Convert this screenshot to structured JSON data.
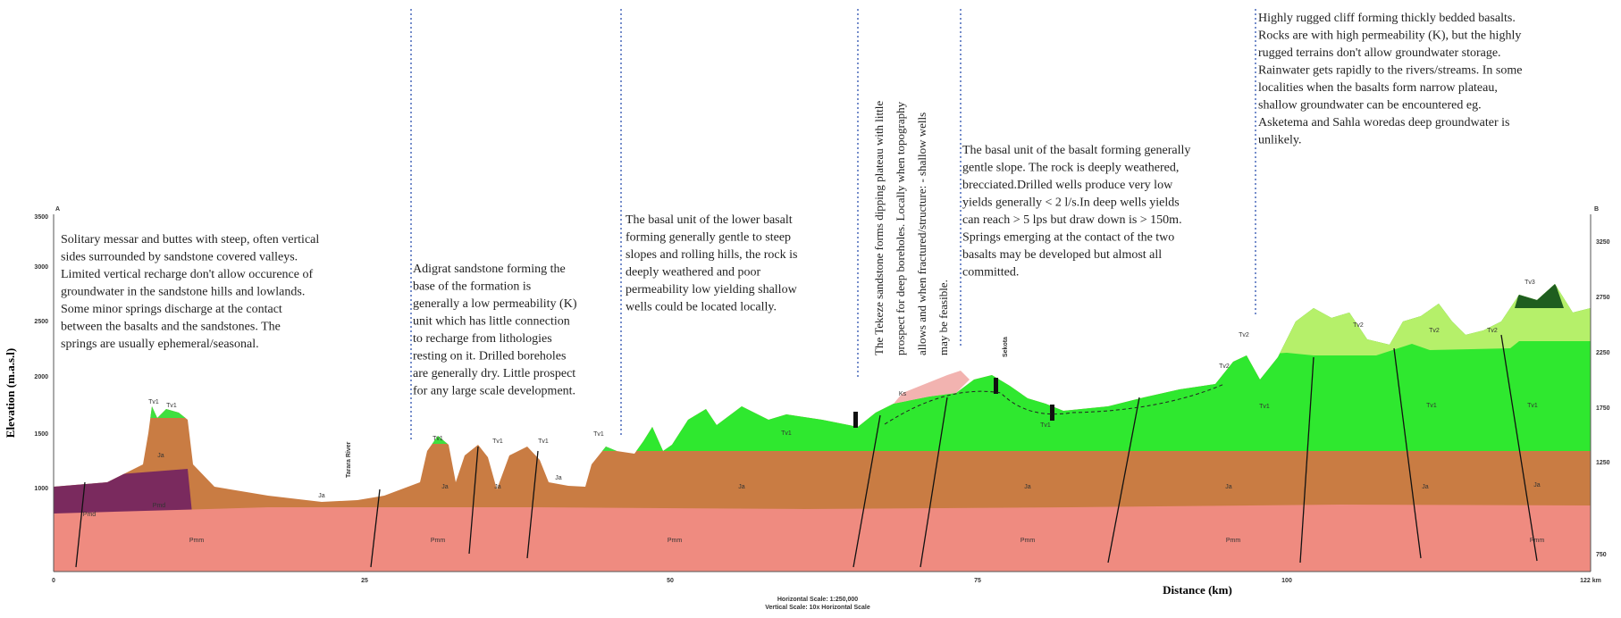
{
  "profile": {
    "start_label": "A",
    "end_label": "B",
    "y_axis_label": "Elevation (m.a.s.l)",
    "x_axis_label": "Distance (km)",
    "left_ticks": [
      "3500",
      "3000",
      "2500",
      "2000",
      "1500",
      "1000"
    ],
    "right_ticks": [
      "3250",
      "2750",
      "2250",
      "1750",
      "1250",
      "750"
    ],
    "x_ticks": [
      "0",
      "25",
      "50",
      "75",
      "100",
      "122 km"
    ],
    "scale_notes": [
      "Horizontal Scale: 1:250,000",
      "Vertical Scale: 10x Horizontal Scale"
    ],
    "place_labels": [
      "Tarara River",
      "Sekota"
    ],
    "formation_labels": [
      "Tv1",
      "Tv1",
      "Ja",
      "Pmd",
      "Pmd",
      "Pmm",
      "Ja",
      "Tv1",
      "Ja",
      "Pmm",
      "Tv1",
      "Ja",
      "Tv1",
      "Ja",
      "Tv1",
      "Pmm",
      "Ja",
      "Tv1",
      "Ks",
      "Tv1",
      "Ja",
      "Pmm",
      "Tv2",
      "Tv2",
      "Tv1",
      "Ja",
      "Pmm",
      "Tv2",
      "Tv1",
      "Ja",
      "Tv2",
      "Tv3",
      "Tv2",
      "Tv1",
      "Ja",
      "Pmm"
    ]
  },
  "annotations": [
    {
      "lines": [
        "Solitary messar and buttes with steep, often vertical",
        "sides surrounded by sandstone covered valleys.",
        "Limited vertical recharge don't allow occurence of",
        "groundwater in the sandstone hills and lowlands.",
        "Some minor springs discharge at the contact",
        "between the basalts and the sandstones. The",
        "springs are usually ephemeral/seasonal."
      ]
    },
    {
      "lines": [
        "Adigrat sandstone forming the",
        "base of the formation is",
        "generally a low permeability (K)",
        "unit which has little connection",
        "to recharge from lithologies",
        "resting on it. Drilled boreholes",
        "are generally dry. Little prospect",
        "for any large scale development."
      ]
    },
    {
      "lines": [
        "The basal unit of the lower basalt",
        "forming generally gentle to steep",
        "slopes and rolling hills, the rock is",
        "deeply weathered and poor",
        "permeability low yielding shallow",
        "wells could be located locally."
      ]
    },
    {
      "lines": [
        "The Tekeze sandstone forms dipping plateau with little",
        "prospect for deep boreholes. Locally when topography",
        "allows and when fractured/structure: - shallow wells",
        "may be feasible."
      ]
    },
    {
      "lines": [
        "The basal unit of the basalt forming generally",
        "gentle slope. The rock is deeply weathered,",
        "brecciated.Drilled wells produce very low",
        "yields generally < 2 l/s.In deep wells yields",
        "can reach > 5 lps but draw down is > 150m.",
        "Springs emerging at the contact of the two",
        "basalts may be developed but almost all",
        "committed."
      ]
    },
    {
      "lines": [
        "Highly rugged cliff forming thickly bedded basalts.",
        "Rocks are with high permeability (K), but the highly",
        "rugged terrains don't allow groundwater storage.",
        "Rainwater gets rapidly to the rivers/streams. In some",
        "localities when the basalts form narrow plateau,",
        "shallow groundwater can be encountered eg.",
        "Asketema and Sahla woredas deep groundwater is",
        "unlikely."
      ]
    }
  ]
}
